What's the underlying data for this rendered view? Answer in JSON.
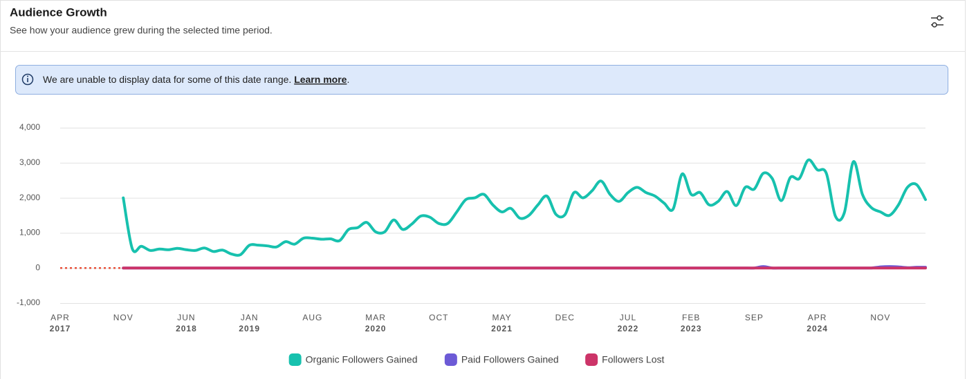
{
  "header": {
    "title": "Audience Growth",
    "subtitle": "See how your audience grew during the selected time period."
  },
  "banner": {
    "text": "We are unable to display data for some of this date range.",
    "link": "Learn more",
    "after": "."
  },
  "chart_data": {
    "type": "line",
    "categories": [
      "APR",
      null,
      null,
      null,
      null,
      null,
      null,
      "NOV",
      null,
      null,
      null,
      null,
      null,
      null,
      "JUN",
      null,
      null,
      null,
      null,
      null,
      null,
      "JAN",
      null,
      null,
      null,
      null,
      null,
      null,
      "AUG",
      null,
      null,
      null,
      null,
      null,
      null,
      "MAR",
      null,
      null,
      null,
      null,
      null,
      null,
      "OCT",
      null,
      null,
      null,
      null,
      null,
      null,
      "MAY",
      null,
      null,
      null,
      null,
      null,
      null,
      "DEC",
      null,
      null,
      null,
      null,
      null,
      null,
      "JUL",
      null,
      null,
      null,
      null,
      null,
      null,
      "FEB",
      null,
      null,
      null,
      null,
      null,
      null,
      "SEP",
      null,
      null,
      null,
      null,
      null,
      null,
      "APR",
      null,
      null,
      null,
      null,
      null,
      null,
      "NOV",
      null,
      null,
      null,
      null,
      null
    ],
    "category_years": [
      "2017",
      null,
      null,
      null,
      null,
      null,
      null,
      null,
      null,
      null,
      null,
      null,
      null,
      null,
      "2018",
      null,
      null,
      null,
      null,
      null,
      null,
      "2019",
      null,
      null,
      null,
      null,
      null,
      null,
      null,
      null,
      null,
      null,
      null,
      null,
      null,
      "2020",
      null,
      null,
      null,
      null,
      null,
      null,
      null,
      null,
      null,
      null,
      null,
      null,
      null,
      "2021",
      null,
      null,
      null,
      null,
      null,
      null,
      null,
      null,
      null,
      null,
      null,
      null,
      null,
      "2022",
      null,
      null,
      null,
      null,
      null,
      null,
      "2023",
      null,
      null,
      null,
      null,
      null,
      null,
      null,
      null,
      null,
      null,
      null,
      null,
      null,
      "2024",
      null,
      null,
      null,
      null,
      null,
      null,
      null,
      null,
      null,
      null,
      null,
      null,
      null
    ],
    "series": [
      {
        "name": "Organic Followers Gained",
        "color": "#17c1ae",
        "values": [
          null,
          null,
          null,
          null,
          null,
          null,
          null,
          2000,
          550,
          620,
          500,
          540,
          520,
          560,
          520,
          500,
          570,
          470,
          510,
          400,
          380,
          650,
          650,
          630,
          600,
          750,
          680,
          850,
          850,
          820,
          830,
          780,
          1100,
          1150,
          1300,
          1030,
          1030,
          1370,
          1100,
          1250,
          1480,
          1450,
          1270,
          1270,
          1600,
          1950,
          2000,
          2100,
          1800,
          1600,
          1700,
          1420,
          1500,
          1800,
          2050,
          1530,
          1520,
          2150,
          2000,
          2200,
          2480,
          2100,
          1900,
          2150,
          2300,
          2150,
          2050,
          1850,
          1680,
          2680,
          2100,
          2150,
          1800,
          1900,
          2180,
          1780,
          2300,
          2250,
          2700,
          2550,
          1920,
          2580,
          2550,
          3080,
          2800,
          2700,
          1480,
          1580,
          3030,
          2100,
          1720,
          1600,
          1500,
          1800,
          2300,
          2380,
          1950
        ]
      },
      {
        "name": "Paid Followers Gained",
        "color": "#6c5ad6",
        "values": [
          null,
          null,
          null,
          null,
          null,
          null,
          null,
          0,
          0,
          0,
          0,
          0,
          0,
          0,
          0,
          0,
          0,
          0,
          0,
          0,
          0,
          0,
          0,
          0,
          0,
          0,
          0,
          0,
          0,
          0,
          0,
          0,
          0,
          0,
          0,
          0,
          0,
          0,
          0,
          0,
          0,
          0,
          0,
          0,
          0,
          0,
          0,
          0,
          0,
          0,
          0,
          0,
          0,
          0,
          0,
          0,
          0,
          0,
          0,
          0,
          0,
          0,
          0,
          0,
          0,
          0,
          0,
          0,
          0,
          0,
          0,
          0,
          0,
          0,
          0,
          0,
          0,
          0,
          40,
          0,
          0,
          0,
          0,
          0,
          0,
          0,
          0,
          0,
          0,
          0,
          0,
          30,
          40,
          30,
          10,
          20,
          20
        ]
      },
      {
        "name": "Followers Lost",
        "color": "#cc3468",
        "values": [
          null,
          null,
          null,
          null,
          null,
          null,
          null,
          0,
          0,
          0,
          0,
          0,
          0,
          0,
          0,
          0,
          0,
          0,
          0,
          0,
          0,
          0,
          0,
          0,
          0,
          0,
          0,
          0,
          0,
          0,
          0,
          0,
          0,
          0,
          0,
          0,
          0,
          0,
          0,
          0,
          0,
          0,
          0,
          0,
          0,
          0,
          0,
          0,
          0,
          0,
          0,
          0,
          0,
          0,
          0,
          0,
          0,
          0,
          0,
          0,
          0,
          0,
          0,
          0,
          0,
          0,
          0,
          0,
          0,
          0,
          0,
          0,
          0,
          0,
          0,
          0,
          0,
          0,
          0,
          0,
          0,
          0,
          0,
          0,
          0,
          0,
          0,
          0,
          0,
          0,
          0,
          0,
          0,
          0,
          0,
          0,
          0
        ]
      }
    ],
    "ylim": [
      -1000,
      4000
    ],
    "yticks": [
      {
        "value": -1000,
        "label": "-1,000"
      },
      0,
      {
        "value": 1000,
        "label": "1,000"
      },
      {
        "value": 2000,
        "label": "2,000"
      },
      {
        "value": 3000,
        "label": "3,000"
      },
      {
        "value": 4000,
        "label": "4,000"
      }
    ],
    "grid": true,
    "legend": "bottom"
  }
}
